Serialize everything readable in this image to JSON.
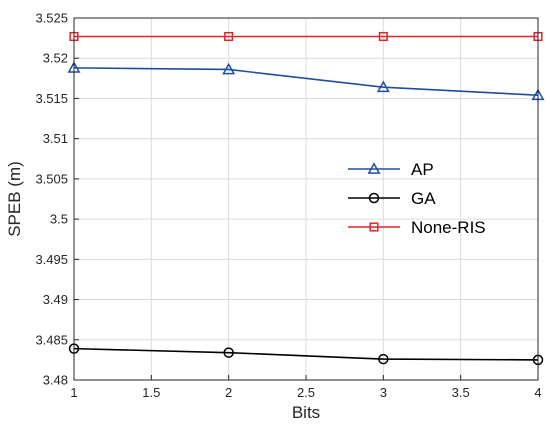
{
  "chart_data": {
    "type": "line",
    "title": "",
    "xlabel": "Bits",
    "ylabel": "SPEB (m)",
    "xlim": [
      1,
      4
    ],
    "ylim": [
      3.48,
      3.525
    ],
    "x_ticks": [
      "1",
      "1.5",
      "2",
      "2.5",
      "3",
      "3.5",
      "4"
    ],
    "y_ticks": [
      "3.48",
      "3.485",
      "3.49",
      "3.495",
      "3.5",
      "3.505",
      "3.51",
      "3.515",
      "3.52",
      "3.525"
    ],
    "grid": true,
    "legend_position": "right",
    "x": [
      1,
      2,
      3,
      4
    ],
    "series": [
      {
        "name": "AP",
        "values": [
          3.5188,
          3.5186,
          3.5164,
          3.5154
        ],
        "color": "#1f4e9c",
        "marker": "triangle"
      },
      {
        "name": "GA",
        "values": [
          3.4839,
          3.4834,
          3.4826,
          3.4825
        ],
        "color": "#000000",
        "marker": "circle"
      },
      {
        "name": "None-RIS",
        "values": [
          3.5227,
          3.5227,
          3.5227,
          3.5227
        ],
        "color": "#e0242b",
        "marker": "square"
      }
    ]
  }
}
